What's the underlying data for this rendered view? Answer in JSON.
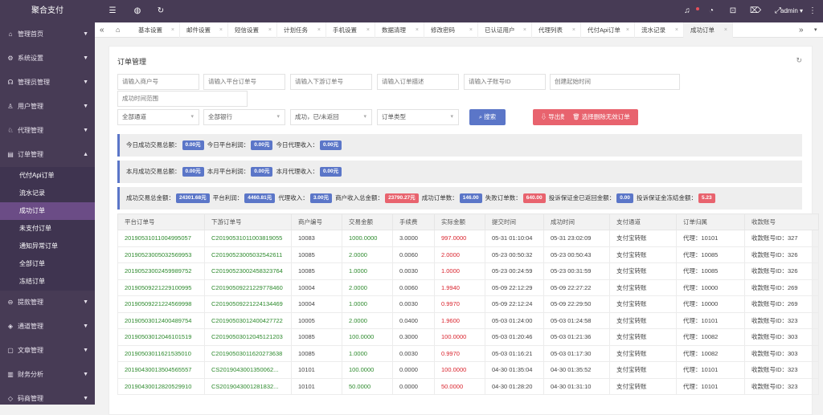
{
  "app": {
    "title": "聚合支付",
    "user": "admin"
  },
  "sidebar": {
    "items": [
      {
        "icon": "⌂",
        "label": "管理首页"
      },
      {
        "icon": "⚙",
        "label": "系统设置"
      },
      {
        "icon": "☊",
        "label": "管理员管理"
      },
      {
        "icon": "♙",
        "label": "用户管理"
      },
      {
        "icon": "♘",
        "label": "代理管理"
      },
      {
        "icon": "▤",
        "label": "订单管理",
        "expanded": true,
        "children": [
          "代付Api订单",
          "流水记录",
          "成功订单",
          "未支付订单",
          "通知异常订单",
          "全部订单",
          "冻结订单"
        ],
        "active": "成功订单"
      },
      {
        "icon": "⊖",
        "label": "提款管理"
      },
      {
        "icon": "◈",
        "label": "通道管理"
      },
      {
        "icon": "▢",
        "label": "文章管理"
      },
      {
        "icon": "▥",
        "label": "财务分析"
      },
      {
        "icon": "◇",
        "label": "码商管理"
      }
    ]
  },
  "tabs": [
    "基本设置",
    "邮件设置",
    "短信设置",
    "计划任务",
    "手机设置",
    "数据清理",
    "修改密码",
    "已认证用户",
    "代理列表",
    "代付Api订单",
    "流水记录",
    "成功订单"
  ],
  "active_tab": "成功订单",
  "page": {
    "title": "订单管理"
  },
  "filters": {
    "merchant_no": "请输入商户号",
    "platform_no": "请输入平台订单号",
    "downstream_no": "请输入下游订单号",
    "order_desc": "请输入订单描述",
    "sub_account": "请输入子账号ID",
    "created_start": "创建起始时间",
    "success_range": "成功时间范围",
    "channel": "全部通道",
    "bank": "全部银行",
    "status": "成功，已/未返回",
    "order_type": "订单类型"
  },
  "buttons": {
    "search": "搜索",
    "export": "导出数据",
    "delete_invalid": "选择删除无效订单"
  },
  "stats": {
    "today": {
      "l1": "今日成功交易总额：",
      "v1": "0.00元",
      "l2": "今日平台利润：",
      "v2": "0.00元",
      "l3": "今日代理收入：",
      "v3": "0.00元"
    },
    "month": {
      "l1": "本月成功交易总额：",
      "v1": "0.00元",
      "l2": "本月平台利润：",
      "v2": "0.00元",
      "l3": "本月代理收入：",
      "v3": "0.00元"
    },
    "total": {
      "l1": "成功交易总金额：",
      "v1": "24301.68元",
      "l2": "平台利润：",
      "v2": "4460.81元",
      "l3": "代理收入：",
      "v3": "3.00元",
      "l4": "商户收入总金额：",
      "v4": "23790.27元",
      "l5": "成功订单数：",
      "v5": "146.00",
      "l6": "失败订单数：",
      "v6": "640.00",
      "l7": "投诉保证金已返回金额：",
      "v7": "0.00",
      "l8": "投诉保证金冻结金额：",
      "v8": "5.23"
    }
  },
  "table": {
    "columns": [
      "平台订单号",
      "下游订单号",
      "商户编号",
      "交易金额",
      "手续费",
      "实际金额",
      "提交时间",
      "成功时间",
      "支付通道",
      "订单归属",
      "收款账号"
    ],
    "rows": [
      [
        "20190531011004995057",
        "C20190531011003819055",
        "10083",
        "1000.0000",
        "3.0000",
        "997.0000",
        "05-31 01:10:04",
        "05-31 23:02:09",
        "支付宝转账",
        "代理：10101",
        "收款账号ID：327"
      ],
      [
        "20190523005032569953",
        "C20190523005032542611",
        "10085",
        "2.0000",
        "0.0060",
        "2.0000",
        "05-23 00:50:32",
        "05-23 00:50:43",
        "支付宝转账",
        "代理：10085",
        "收款账号ID：326"
      ],
      [
        "20190523002459989752",
        "C20190523002458323764",
        "10085",
        "1.0000",
        "0.0030",
        "1.0000",
        "05-23 00:24:59",
        "05-23 00:31:59",
        "支付宝转账",
        "代理：10085",
        "收款账号ID：326"
      ],
      [
        "20190509221229100995",
        "C20190509221229778460",
        "10004",
        "2.0000",
        "0.0060",
        "1.9940",
        "05-09 22:12:29",
        "05-09 22:27:22",
        "支付宝转账",
        "代理：10000",
        "收款账号ID：269"
      ],
      [
        "20190509221224569998",
        "C20190509221224134469",
        "10004",
        "1.0000",
        "0.0030",
        "0.9970",
        "05-09 22:12:24",
        "05-09 22:29:50",
        "支付宝转账",
        "代理：10000",
        "收款账号ID：269"
      ],
      [
        "20190503012400489754",
        "C20190503012400427722",
        "10005",
        "2.0000",
        "0.0400",
        "1.9600",
        "05-03 01:24:00",
        "05-03 01:24:58",
        "支付宝转账",
        "代理：10101",
        "收款账号ID：323"
      ],
      [
        "20190503012046101519",
        "C20190503012045121203",
        "10085",
        "100.0000",
        "0.3000",
        "100.0000",
        "05-03 01:20:46",
        "05-03 01:21:36",
        "支付宝转账",
        "代理：10082",
        "收款账号ID：303"
      ],
      [
        "20190503011621535010",
        "C20190503011620273638",
        "10085",
        "1.0000",
        "0.0030",
        "0.9970",
        "05-03 01:16:21",
        "05-03 01:17:30",
        "支付宝转账",
        "代理：10082",
        "收款账号ID：303"
      ],
      [
        "20190430013504565557",
        "CS2019043001350062...",
        "10101",
        "100.0000",
        "0.0000",
        "100.0000",
        "04-30 01:35:04",
        "04-30 01:35:52",
        "支付宝转账",
        "代理：10101",
        "收款账号ID：323"
      ],
      [
        "20190430012820529910",
        "CS2019043001281832...",
        "10101",
        "50.0000",
        "0.0000",
        "50.0000",
        "04-30 01:28:20",
        "04-30 01:31:10",
        "支付宝转账",
        "代理：10101",
        "收款账号ID：323"
      ]
    ]
  }
}
